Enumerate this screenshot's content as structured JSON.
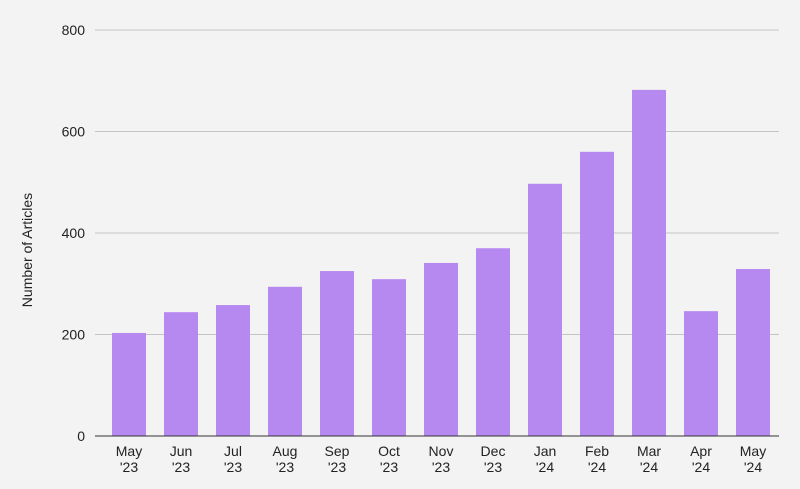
{
  "chart_data": {
    "type": "bar",
    "y_label": "Number of Articles",
    "categories": [
      "May '23",
      "Jun '23",
      "Jul '23",
      "Aug '23",
      "Sep '23",
      "Oct '23",
      "Nov '23",
      "Dec '23",
      "Jan '24",
      "Feb '24",
      "Mar '24",
      "Apr '24",
      "May '24"
    ],
    "values": [
      203,
      244,
      258,
      294,
      325,
      309,
      341,
      370,
      497,
      560,
      682,
      246,
      329
    ],
    "color": "#b589f0",
    "ylim": [
      0,
      800
    ],
    "yticks": [
      0,
      200,
      400,
      600,
      800
    ],
    "grid": true
  }
}
